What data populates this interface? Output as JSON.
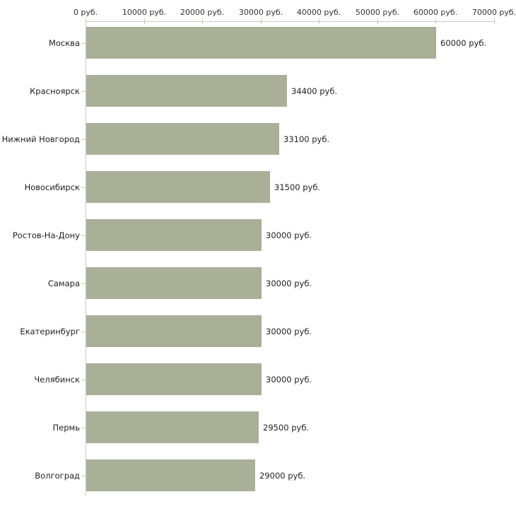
{
  "chart_data": {
    "type": "bar",
    "orientation": "horizontal",
    "title": "",
    "xlabel": "",
    "ylabel": "",
    "unit": "руб.",
    "categories": [
      "Москва",
      "Красноярск",
      "Нижний Новгород",
      "Новосибирск",
      "Ростов-На-Дону",
      "Самара",
      "Екатеринбург",
      "Челябинск",
      "Пермь",
      "Волгоград"
    ],
    "values": [
      60000,
      34400,
      33100,
      31500,
      30000,
      30000,
      30000,
      30000,
      29500,
      29000
    ],
    "value_labels": [
      "60000 руб.",
      "34400 руб.",
      "33100 руб.",
      "31500 руб.",
      "30000 руб.",
      "30000 руб.",
      "30000 руб.",
      "30000 руб.",
      "29500 руб.",
      "29000 руб."
    ],
    "x_ticks": [
      0,
      10000,
      20000,
      30000,
      40000,
      50000,
      60000,
      70000
    ],
    "x_tick_labels": [
      "0 руб.",
      "10000 руб.",
      "20000 руб.",
      "30000 руб.",
      "40000 руб.",
      "50000 руб.",
      "60000 руб.",
      "70000 руб."
    ],
    "xlim": [
      0,
      70000
    ],
    "grid": false,
    "legend": false,
    "colors": {
      "bar": "#aab098",
      "axis_line": "#c9c9c9",
      "tick": "#cccc99",
      "text": "#333333"
    }
  }
}
